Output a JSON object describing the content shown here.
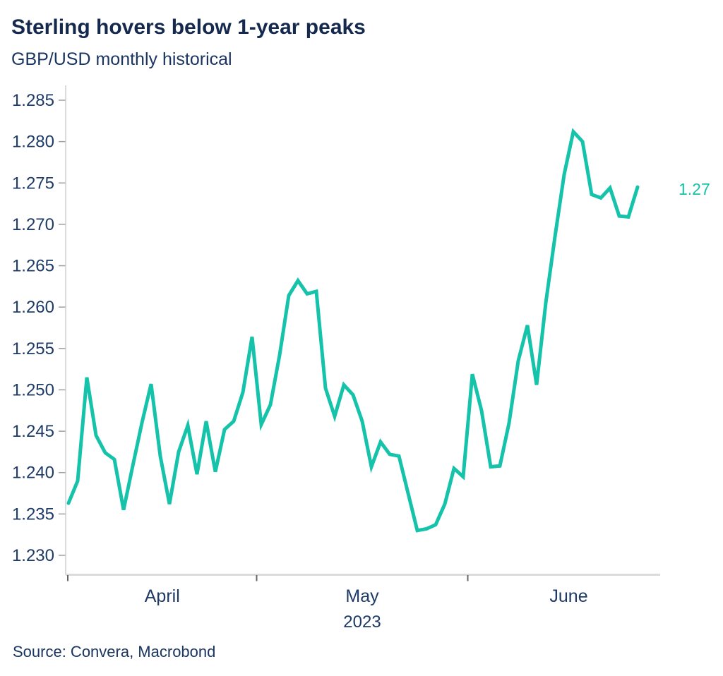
{
  "chart": {
    "title": "Sterling hovers below 1-year peaks",
    "subtitle": "GBP/USD monthly historical",
    "source": "Source: Convera, Macrobond",
    "colors": {
      "line": "#15C3AB",
      "title_text": "#15294E",
      "label_text": "#1E3A67",
      "axis_line": "#DBDBDB",
      "y_tick": "#A0A0A0",
      "x_tick": "#666666"
    }
  },
  "chart_data": {
    "type": "line",
    "title": "Sterling hovers below 1-year peaks",
    "subtitle": "GBP/USD monthly historical",
    "grid": "off",
    "legend": "none",
    "ylim": [
      1.23,
      1.285
    ],
    "y_tick_step": 0.005,
    "y_tick_labels": [
      "1.285",
      "1.280",
      "1.275",
      "1.270",
      "1.265",
      "1.260",
      "1.255",
      "1.250",
      "1.245",
      "1.240",
      "1.235",
      "1.230"
    ],
    "x_axis": {
      "year_label": "2023",
      "month_labels": [
        "April",
        "May",
        "June"
      ],
      "month_boundary_indices": [
        0,
        21,
        44
      ],
      "month_business_days": [
        20,
        23,
        22
      ]
    },
    "end_label": "1.27",
    "series": [
      {
        "name": "GBP/USD",
        "dates": [
          "Mar 31",
          "Apr 3",
          "Apr 4",
          "Apr 5",
          "Apr 6",
          "Apr 7",
          "Apr 10",
          "Apr 11",
          "Apr 12",
          "Apr 13",
          "Apr 14",
          "Apr 17",
          "Apr 18",
          "Apr 19",
          "Apr 20",
          "Apr 21",
          "Apr 24",
          "Apr 25",
          "Apr 26",
          "Apr 27",
          "Apr 28",
          "May 1",
          "May 2",
          "May 3",
          "May 4",
          "May 5",
          "May 8",
          "May 9",
          "May 10",
          "May 11",
          "May 12",
          "May 15",
          "May 16",
          "May 17",
          "May 18",
          "May 19",
          "May 22",
          "May 23",
          "May 24",
          "May 25",
          "May 26",
          "May 29",
          "May 30",
          "May 31",
          "Jun 1",
          "Jun 2",
          "Jun 5",
          "Jun 6",
          "Jun 7",
          "Jun 8",
          "Jun 9",
          "Jun 12",
          "Jun 13",
          "Jun 14",
          "Jun 15",
          "Jun 16",
          "Jun 19",
          "Jun 20",
          "Jun 21",
          "Jun 22",
          "Jun 23",
          "Jun 26",
          "Jun 27"
        ],
        "values": [
          1.2363,
          1.239,
          1.2515,
          1.2445,
          1.2424,
          1.2416,
          1.2355,
          1.2408,
          1.246,
          1.2507,
          1.242,
          1.2362,
          1.2425,
          1.2457,
          1.2398,
          1.2462,
          1.2401,
          1.2452,
          1.2462,
          1.2497,
          1.2564,
          1.2458,
          1.2482,
          1.2542,
          1.2614,
          1.2632,
          1.2616,
          1.2619,
          1.2502,
          1.2468,
          1.2506,
          1.2494,
          1.2462,
          1.2407,
          1.2437,
          1.2422,
          1.242,
          1.2375,
          1.233,
          1.2332,
          1.2337,
          1.2362,
          1.2405,
          1.2395,
          1.2519,
          1.2475,
          1.2407,
          1.2408,
          1.246,
          1.2535,
          1.2578,
          1.2506,
          1.2605,
          1.2685,
          1.276,
          1.2812,
          1.28,
          1.2736,
          1.2732,
          1.2744,
          1.271,
          1.2709,
          1.2745
        ]
      }
    ]
  }
}
